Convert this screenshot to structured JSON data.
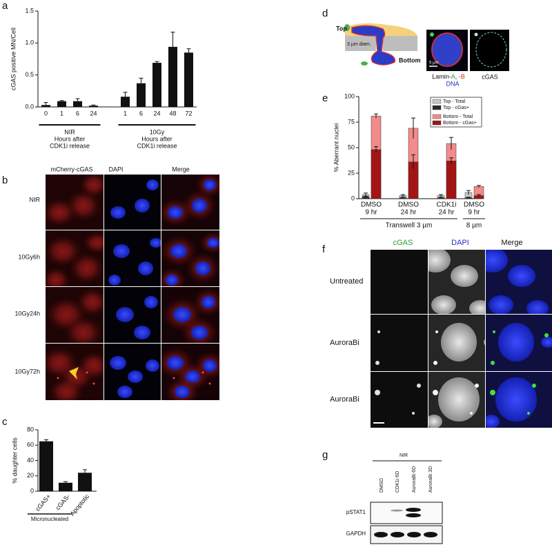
{
  "panel_letters": [
    "a",
    "b",
    "c",
    "d",
    "e",
    "f",
    "g"
  ],
  "chart_data": [
    {
      "type": "bar",
      "ylabel": "cGAS positive MN/Cell",
      "categories": [
        "0",
        "1",
        "6",
        "24",
        "1",
        "6",
        "24",
        "48",
        "72"
      ],
      "values": [
        0.03,
        0.09,
        0.09,
        0.02,
        0.16,
        0.37,
        0.69,
        0.94,
        0.85
      ],
      "errors": [
        0.04,
        0.01,
        0.04,
        0.01,
        0.07,
        0.08,
        0.02,
        0.23,
        0.06
      ],
      "groups": [
        [
          "NIR",
          "Hours after",
          "CDK1i release"
        ],
        [
          "10Gy",
          "Hours after",
          "CDK1i release"
        ]
      ],
      "color": "#111111",
      "ylim": [
        0,
        1.5
      ],
      "yticks": [
        {
          "value": 0,
          "label": "0.0"
        },
        0.5,
        {
          "value": 1,
          "label": "1.0"
        },
        1.5
      ]
    },
    {
      "type": "bar",
      "ylabel": "% daughter cells",
      "categories": [
        "cGAS+",
        "cGAS-",
        "Apoptotic"
      ],
      "values": [
        65,
        11,
        24
      ],
      "errors": [
        2,
        1.5,
        4
      ],
      "groups": [
        [
          "Micronucleated"
        ]
      ],
      "color": "#111111",
      "ylim": [
        0,
        80
      ],
      "yticks": [
        0,
        20,
        40,
        60,
        80
      ]
    },
    {
      "type": "bar",
      "ylabel": "% Aberrant nuclei",
      "categories": [
        [
          "DMSO",
          "9 hr"
        ],
        [
          "DMSO",
          "24 hr"
        ],
        [
          "CDK1i",
          "24 hr"
        ],
        [
          "DMSO",
          "9 hr"
        ]
      ],
      "groups": [
        [
          "Transwell 3 µm"
        ],
        [
          "8 µm"
        ]
      ],
      "series": [
        {
          "name": "Top - Total",
          "color": "#c8c8c8",
          "values": [
            4,
            3,
            3,
            6
          ],
          "errors": [
            1.5,
            1,
            1,
            2
          ]
        },
        {
          "name": "Top - cGas+",
          "color": "#2a2a2a",
          "values": [
            2,
            1,
            1,
            1
          ],
          "errors": [
            0.5,
            0.5,
            0.5,
            0.5
          ]
        },
        {
          "name": "Bottom - Total",
          "color": "#f28b8b",
          "values": [
            81,
            69,
            54,
            12
          ],
          "errors": [
            2,
            10,
            6,
            1
          ]
        },
        {
          "name": "Bottom - cGas+",
          "color": "#a31515",
          "values": [
            48,
            36,
            37,
            3
          ],
          "errors": [
            3,
            7,
            3,
            1
          ]
        }
      ],
      "legend": "upper right",
      "ylim": [
        0,
        100
      ],
      "yticks": [
        0,
        25,
        50,
        75,
        100
      ]
    }
  ],
  "panel_b": {
    "columns": [
      "mCherry-cGAS",
      "DAPI",
      "Merge"
    ],
    "rows": [
      "NIR",
      "10Gy6h",
      "10Gy24h",
      "10Gy72h"
    ]
  },
  "panel_d": {
    "top": "Top",
    "bottom": "Bottom",
    "pore": "3 µm diam.",
    "scale": "5 µm",
    "lamin": [
      "Lamin-",
      "A",
      ", ",
      "-B"
    ],
    "dna": "DNA",
    "cgas": "cGAS"
  },
  "panel_f": {
    "columns": [
      "cGAS",
      "DAPI",
      "Merge"
    ],
    "rows": [
      "Untreated",
      "AuroraBi",
      "AuroraBi"
    ]
  },
  "panel_g": {
    "condition": "NIR",
    "lanes": [
      "DMSO",
      "CDK1i 6D",
      "AuroraBi 6D",
      "AuroraBi 3D"
    ],
    "rows": [
      "pSTAT1",
      "GAPDH"
    ]
  }
}
